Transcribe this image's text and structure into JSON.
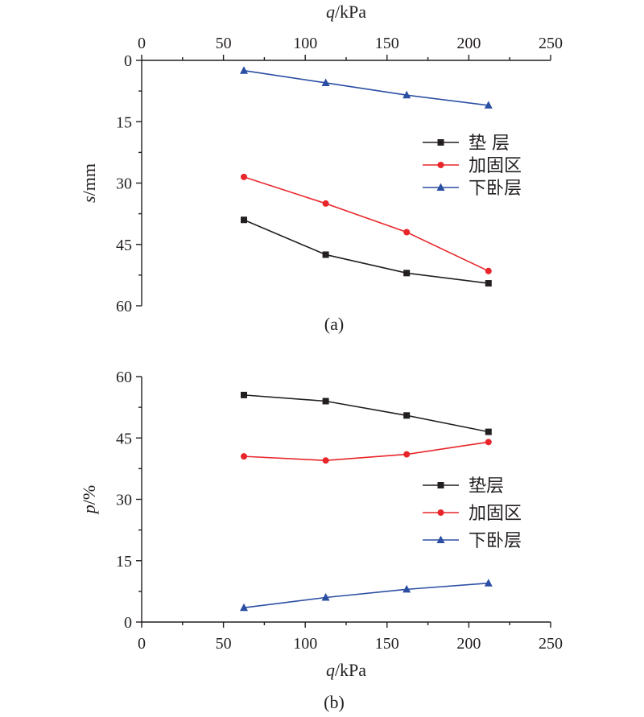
{
  "chart_data": [
    {
      "type": "line",
      "panel_label": "(a)",
      "xlabel_var": "q",
      "xlabel_unit": "/kPa",
      "xlabel_position": "top",
      "ylabel_var": "s",
      "ylabel_unit": "/mm",
      "xlim": [
        0,
        250
      ],
      "ylim": [
        0,
        60
      ],
      "y_inverted": true,
      "x_ticks": [
        "0",
        "50",
        "100",
        "150",
        "200",
        "250"
      ],
      "y_ticks": [
        "0",
        "15",
        "30",
        "45",
        "60"
      ],
      "legend_position": "right",
      "series": [
        {
          "name": "垫 层",
          "marker": "square",
          "color": "#231f20",
          "x": [
            62.5,
            112.5,
            162,
            212
          ],
          "y": [
            39,
            47.5,
            52,
            54.5
          ]
        },
        {
          "name": "加固区",
          "marker": "circle",
          "color": "#e8262a",
          "x": [
            62.5,
            112.5,
            162,
            212
          ],
          "y": [
            28.5,
            35,
            42,
            51.5
          ]
        },
        {
          "name": "下卧层",
          "marker": "triangle",
          "color": "#2b4fa3",
          "x": [
            62.5,
            112.5,
            162,
            212
          ],
          "y": [
            2.5,
            5.5,
            8.5,
            11
          ]
        }
      ]
    },
    {
      "type": "line",
      "panel_label": "(b)",
      "xlabel_var": "q",
      "xlabel_unit": "/kPa",
      "xlabel_position": "bottom",
      "ylabel_var": "p",
      "ylabel_unit": "/%",
      "xlim": [
        0,
        250
      ],
      "ylim": [
        0,
        60
      ],
      "y_inverted": false,
      "x_ticks": [
        "0",
        "50",
        "100",
        "150",
        "200",
        "250"
      ],
      "y_ticks": [
        "0",
        "15",
        "30",
        "45",
        "60"
      ],
      "legend_position": "right",
      "series": [
        {
          "name": "垫层",
          "marker": "square",
          "color": "#231f20",
          "x": [
            62.5,
            112.5,
            162,
            212
          ],
          "y": [
            55.5,
            54,
            50.5,
            46.5
          ]
        },
        {
          "name": "加固区",
          "marker": "circle",
          "color": "#e8262a",
          "x": [
            62.5,
            112.5,
            162,
            212
          ],
          "y": [
            40.5,
            39.5,
            41,
            44
          ]
        },
        {
          "name": "下卧层",
          "marker": "triangle",
          "color": "#2b4fa3",
          "x": [
            62.5,
            112.5,
            162,
            212
          ],
          "y": [
            3.5,
            6,
            8,
            9.5
          ]
        }
      ]
    }
  ]
}
